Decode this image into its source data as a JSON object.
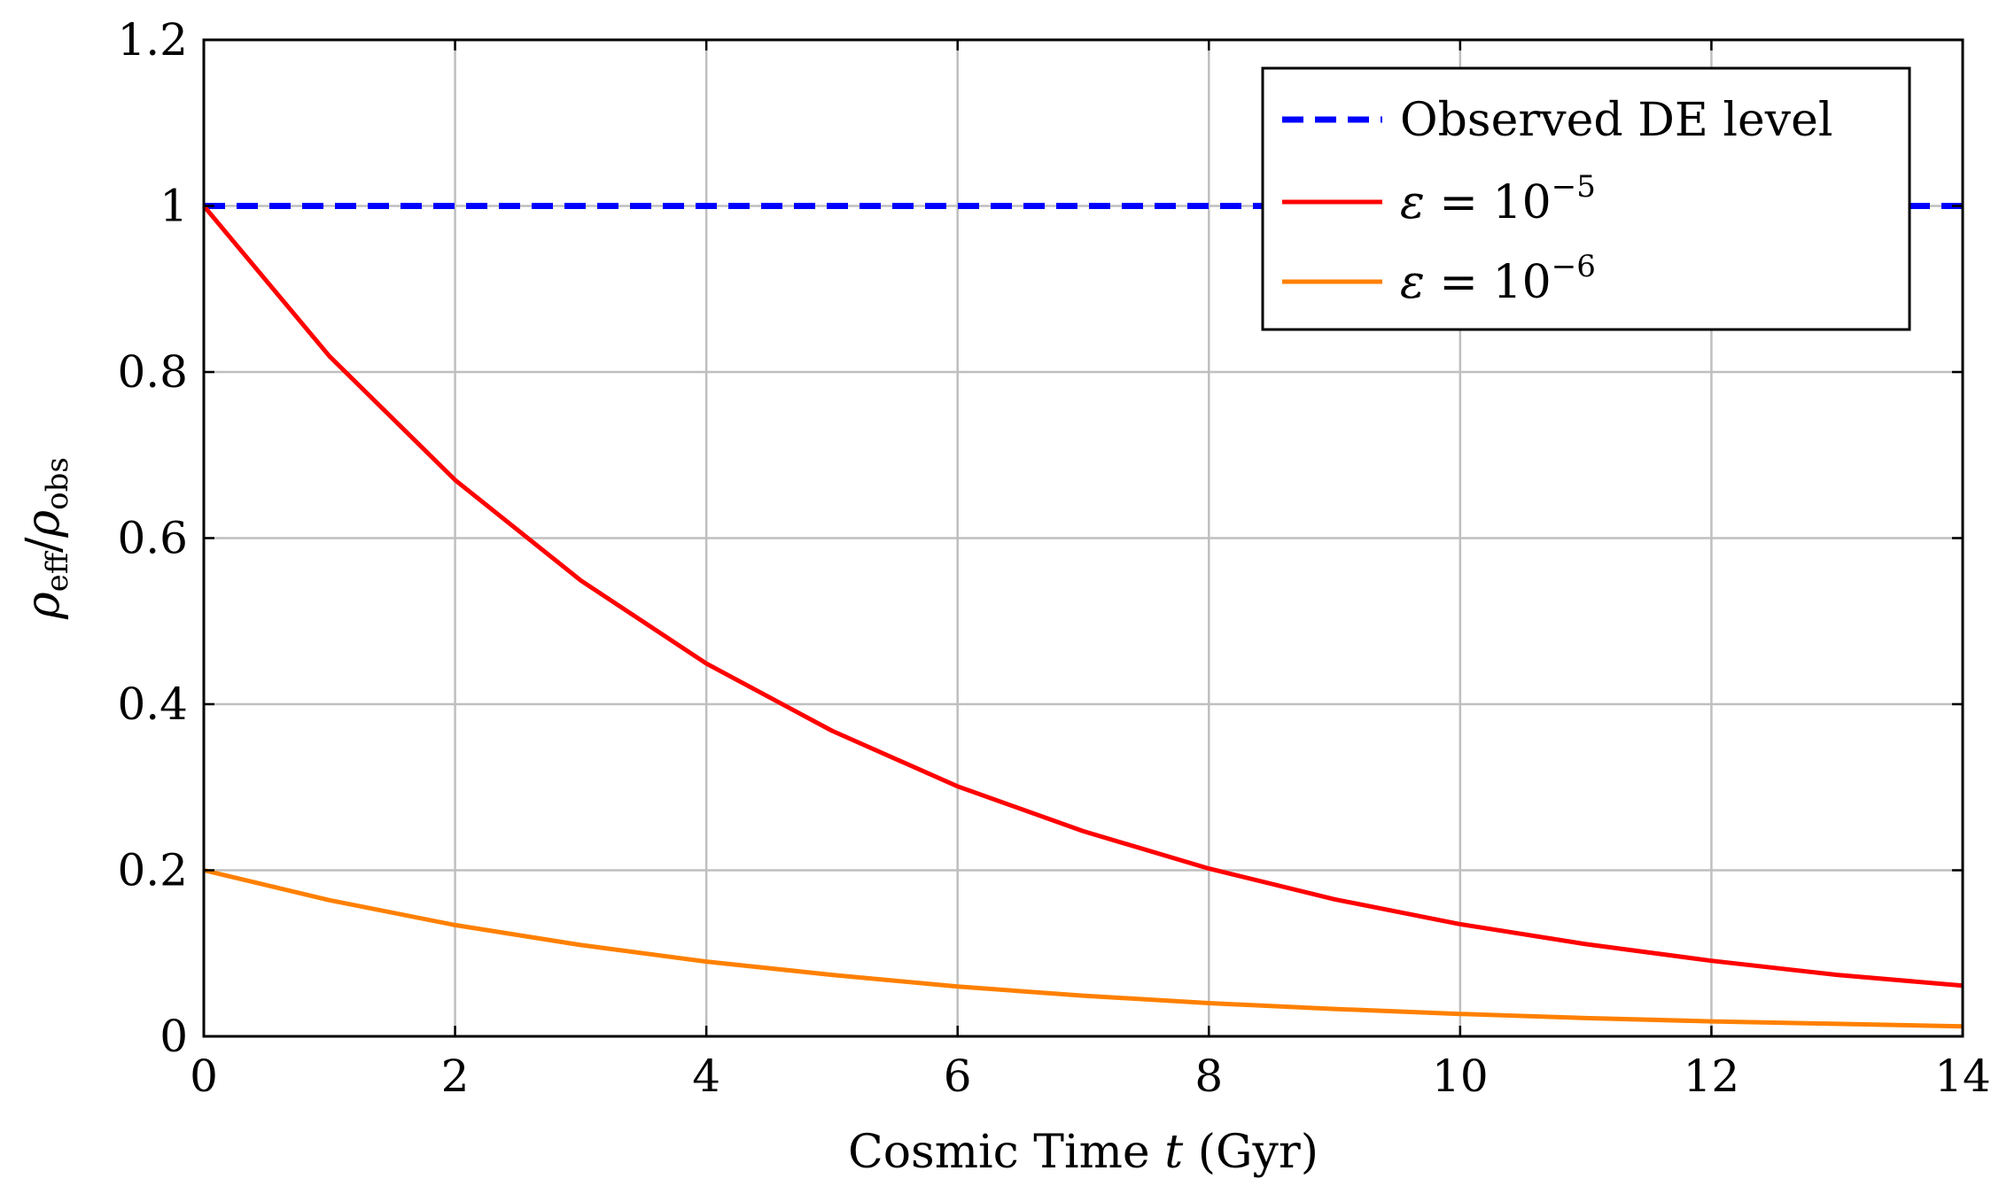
{
  "chart_data": {
    "type": "line",
    "title": "",
    "xlabel": "Cosmic Time t (Gyr)",
    "xlabel_parts": {
      "prefix": "Cosmic Time",
      "variable": "t",
      "suffix": "(Gyr)"
    },
    "ylabel": "ρeff/ρobs",
    "ylabel_parts": {
      "num_symbol": "ρ",
      "num_sub": "eff",
      "slash": "/",
      "den_symbol": "ρ",
      "den_sub": "obs"
    },
    "xlim": [
      0,
      14
    ],
    "ylim": [
      0,
      1.2
    ],
    "xticks": [
      0,
      2,
      4,
      6,
      8,
      10,
      12,
      14
    ],
    "xtick_labels": [
      "0",
      "2",
      "4",
      "6",
      "8",
      "10",
      "12",
      "14"
    ],
    "yticks": [
      0,
      0.2,
      0.4,
      0.6,
      0.8,
      1.0,
      1.2
    ],
    "ytick_labels": [
      "0",
      "0.2",
      "0.4",
      "0.6",
      "0.8",
      "1",
      "1.2"
    ],
    "grid": true,
    "legend_position": "top-right",
    "series": [
      {
        "name": "Observed DE level",
        "legend_text": "Observed DE level",
        "color": "#0000ff",
        "style": "dashed",
        "x": [
          0,
          14
        ],
        "y": [
          1.0,
          1.0
        ]
      },
      {
        "name": "ε = 10^−5",
        "legend_symbol": "ε",
        "legend_base": " = 10",
        "legend_exp": "−5",
        "color": "#ff0000",
        "style": "solid",
        "x": [
          0,
          1,
          2,
          3,
          4,
          5,
          6,
          7,
          8,
          9,
          10,
          11,
          12,
          13,
          14
        ],
        "y": [
          1.0,
          0.819,
          0.67,
          0.549,
          0.449,
          0.368,
          0.301,
          0.247,
          0.202,
          0.165,
          0.135,
          0.111,
          0.091,
          0.074,
          0.061
        ]
      },
      {
        "name": "ε = 10^−6",
        "legend_symbol": "ε",
        "legend_base": " = 10",
        "legend_exp": "−6",
        "color": "#ff8000",
        "style": "solid",
        "x": [
          0,
          1,
          2,
          3,
          4,
          5,
          6,
          7,
          8,
          9,
          10,
          11,
          12,
          13,
          14
        ],
        "y": [
          0.2,
          0.164,
          0.134,
          0.11,
          0.09,
          0.074,
          0.06,
          0.049,
          0.04,
          0.033,
          0.027,
          0.022,
          0.018,
          0.015,
          0.012
        ]
      }
    ]
  }
}
